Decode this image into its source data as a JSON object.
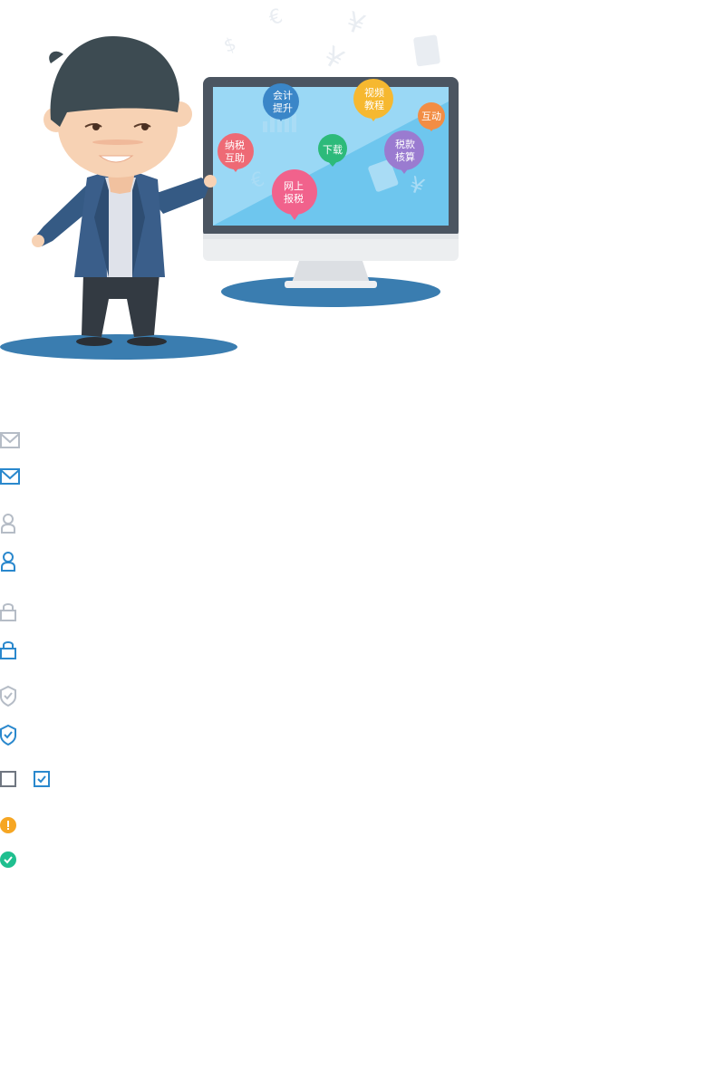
{
  "illustration": {
    "bubbles": [
      {
        "id": "accounting",
        "lines": [
          "会计",
          "提升"
        ],
        "color": "#3a86c8"
      },
      {
        "id": "video",
        "lines": [
          "视频",
          "教程"
        ],
        "color": "#f6b830"
      },
      {
        "id": "interact",
        "lines": [
          "互动"
        ],
        "color": "#f28d44"
      },
      {
        "id": "mutual",
        "lines": [
          "纳税",
          "互助"
        ],
        "color": "#ee6a75"
      },
      {
        "id": "download",
        "lines": [
          "下载"
        ],
        "color": "#2dba7a"
      },
      {
        "id": "tax",
        "lines": [
          "税款",
          "核算"
        ],
        "color": "#9a7bd0"
      },
      {
        "id": "online",
        "lines": [
          "网上",
          "报税"
        ],
        "color": "#f1628c"
      }
    ]
  },
  "icons": [
    {
      "name": "mail-icon",
      "state": "default",
      "color": "#b5bcc6"
    },
    {
      "name": "mail-icon",
      "state": "active",
      "color": "#2a88cd"
    },
    {
      "name": "user-icon",
      "state": "default",
      "color": "#b5bcc6"
    },
    {
      "name": "user-icon",
      "state": "active",
      "color": "#2a88cd"
    },
    {
      "name": "lock-icon",
      "state": "default",
      "color": "#b5bcc6"
    },
    {
      "name": "lock-icon",
      "state": "active",
      "color": "#2a88cd"
    },
    {
      "name": "shield-check-icon",
      "state": "default",
      "color": "#b5bcc6"
    },
    {
      "name": "shield-check-icon",
      "state": "active",
      "color": "#2a88cd"
    },
    {
      "name": "checkbox-unchecked-icon",
      "color": "#6f7680"
    },
    {
      "name": "checkbox-checked-icon",
      "color": "#2a88cd"
    },
    {
      "name": "warning-icon",
      "color": "#f6a623"
    },
    {
      "name": "success-icon",
      "color": "#1fbf8f"
    }
  ]
}
